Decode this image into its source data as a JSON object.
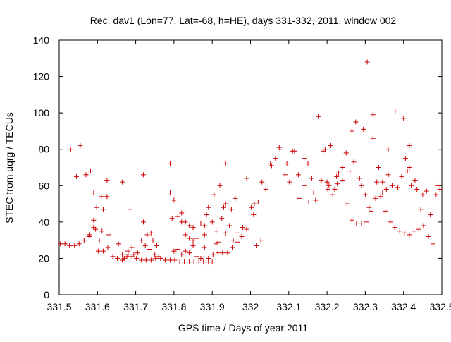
{
  "chart_data": {
    "type": "scatter",
    "title": "Rec. dav1 (Lon=77, Lat=-68, h=HE), days 331-332, 2011, window 002",
    "xlabel": "GPS time / Days of year 2011",
    "ylabel": "STEC from uqrg / TECUs",
    "xlim": [
      331.5,
      332.5
    ],
    "ylim": [
      0,
      140
    ],
    "xticks": [
      "331.5",
      "331.6",
      "331.7",
      "331.8",
      "331.9",
      "332",
      "332.1",
      "332.2",
      "332.3",
      "332.4",
      "332.5"
    ],
    "yticks": [
      "0",
      "20",
      "40",
      "60",
      "80",
      "100",
      "120",
      "140"
    ],
    "grid": false,
    "legend": "none",
    "marker": "plus",
    "marker_color": "#cc0000",
    "series": [
      {
        "points": [
          [
            331.503,
            28
          ],
          [
            331.515,
            28
          ],
          [
            331.527,
            27
          ],
          [
            331.54,
            27
          ],
          [
            331.552,
            28
          ],
          [
            331.565,
            30
          ],
          [
            331.578,
            32
          ],
          [
            331.59,
            37
          ],
          [
            331.602,
            24
          ],
          [
            331.615,
            24
          ],
          [
            331.627,
            26
          ],
          [
            331.64,
            21
          ],
          [
            331.652,
            20
          ],
          [
            331.665,
            19
          ],
          [
            331.677,
            21
          ],
          [
            331.69,
            21
          ],
          [
            331.702,
            20
          ],
          [
            331.715,
            19
          ],
          [
            331.727,
            19
          ],
          [
            331.74,
            19
          ],
          [
            331.752,
            20
          ],
          [
            331.765,
            20
          ],
          [
            331.777,
            19
          ],
          [
            331.79,
            19
          ],
          [
            331.802,
            19
          ],
          [
            331.815,
            18
          ],
          [
            331.827,
            18
          ],
          [
            331.84,
            18
          ],
          [
            331.852,
            18
          ],
          [
            331.865,
            18
          ],
          [
            331.877,
            18
          ],
          [
            331.89,
            18
          ],
          [
            331.902,
            22
          ],
          [
            331.915,
            23
          ],
          [
            331.927,
            23
          ],
          [
            331.94,
            23
          ],
          [
            331.952,
            26
          ],
          [
            331.965,
            29
          ],
          [
            331.977,
            32
          ],
          [
            331.99,
            36
          ],
          [
            332.002,
            48
          ],
          [
            332.015,
            27
          ],
          [
            332.027,
            30
          ],
          [
            332.04,
            58
          ],
          [
            332.052,
            72
          ],
          [
            332.065,
            75
          ],
          [
            332.077,
            80
          ],
          [
            332.09,
            66
          ],
          [
            332.102,
            62
          ],
          [
            332.115,
            79
          ],
          [
            332.127,
            53
          ],
          [
            332.14,
            60
          ],
          [
            332.152,
            51
          ],
          [
            332.165,
            56
          ],
          [
            332.177,
            98
          ],
          [
            332.19,
            79
          ],
          [
            332.202,
            58
          ],
          [
            332.215,
            55
          ],
          [
            332.227,
            61
          ],
          [
            332.24,
            63
          ],
          [
            332.252,
            50
          ],
          [
            332.265,
            41
          ],
          [
            332.277,
            39
          ],
          [
            332.29,
            39
          ],
          [
            332.302,
            40
          ],
          [
            332.315,
            46
          ],
          [
            332.327,
            53
          ],
          [
            332.34,
            54
          ],
          [
            332.352,
            46
          ],
          [
            332.365,
            40
          ],
          [
            332.377,
            37
          ],
          [
            332.39,
            35
          ],
          [
            332.402,
            34
          ],
          [
            332.415,
            33
          ],
          [
            332.427,
            35
          ],
          [
            332.44,
            36
          ],
          [
            332.452,
            38
          ],
          [
            332.465,
            32
          ],
          [
            332.477,
            28
          ],
          [
            332.49,
            60
          ],
          [
            331.53,
            80
          ],
          [
            331.555,
            82
          ],
          [
            331.545,
            65
          ],
          [
            331.57,
            66
          ],
          [
            331.582,
            68
          ],
          [
            331.59,
            56
          ],
          [
            331.598,
            48
          ],
          [
            331.61,
            54
          ],
          [
            331.625,
            54
          ],
          [
            331.625,
            63
          ],
          [
            331.665,
            62
          ],
          [
            331.685,
            47
          ],
          [
            331.72,
            66
          ],
          [
            331.79,
            72
          ],
          [
            331.8,
            52
          ],
          [
            331.79,
            56
          ],
          [
            331.83,
            40
          ],
          [
            331.84,
            38
          ],
          [
            331.85,
            37
          ],
          [
            331.88,
            38
          ],
          [
            331.905,
            55
          ],
          [
            331.92,
            60
          ],
          [
            331.935,
            72
          ],
          [
            331.935,
            50
          ],
          [
            331.95,
            47
          ],
          [
            331.96,
            53
          ],
          [
            331.99,
            64
          ],
          [
            332.01,
            50
          ],
          [
            332.03,
            62
          ],
          [
            332.055,
            71
          ],
          [
            332.075,
            81
          ],
          [
            332.11,
            79
          ],
          [
            332.15,
            72
          ],
          [
            332.16,
            64
          ],
          [
            332.195,
            80
          ],
          [
            332.21,
            82
          ],
          [
            332.23,
            67
          ],
          [
            332.25,
            78
          ],
          [
            332.265,
            90
          ],
          [
            332.275,
            95
          ],
          [
            332.295,
            91
          ],
          [
            332.305,
            128
          ],
          [
            332.32,
            99
          ],
          [
            332.32,
            86
          ],
          [
            332.335,
            70
          ],
          [
            332.345,
            62
          ],
          [
            332.36,
            80
          ],
          [
            332.378,
            101
          ],
          [
            332.4,
            97
          ],
          [
            332.405,
            75
          ],
          [
            332.415,
            82
          ],
          [
            332.415,
            70
          ],
          [
            332.43,
            63
          ],
          [
            332.445,
            47
          ],
          [
            332.46,
            57
          ],
          [
            332.47,
            44
          ],
          [
            332.485,
            55
          ],
          [
            332.495,
            58
          ],
          [
            331.58,
            33
          ],
          [
            331.59,
            41
          ],
          [
            331.595,
            36
          ],
          [
            331.605,
            30
          ],
          [
            331.612,
            35
          ],
          [
            331.615,
            47
          ],
          [
            331.63,
            33
          ],
          [
            331.68,
            22
          ],
          [
            331.69,
            26
          ],
          [
            331.72,
            40
          ],
          [
            331.73,
            33
          ],
          [
            331.74,
            34
          ],
          [
            331.745,
            30
          ],
          [
            331.755,
            27
          ],
          [
            331.795,
            42
          ],
          [
            331.81,
            43
          ],
          [
            331.82,
            45
          ],
          [
            331.82,
            40
          ],
          [
            331.83,
            33
          ],
          [
            331.84,
            31
          ],
          [
            331.85,
            30
          ],
          [
            331.86,
            31
          ],
          [
            331.87,
            39
          ],
          [
            331.88,
            33
          ],
          [
            331.885,
            44
          ],
          [
            331.89,
            48
          ],
          [
            331.9,
            40
          ],
          [
            331.91,
            35
          ],
          [
            331.915,
            29
          ],
          [
            331.925,
            42
          ],
          [
            331.93,
            48
          ],
          [
            331.935,
            34
          ],
          [
            331.945,
            38
          ],
          [
            331.955,
            30
          ],
          [
            331.965,
            34
          ],
          [
            331.98,
            37
          ],
          [
            332.008,
            44
          ],
          [
            332.02,
            51
          ],
          [
            332.095,
            72
          ],
          [
            332.125,
            66
          ],
          [
            332.14,
            75
          ],
          [
            332.17,
            52
          ],
          [
            332.185,
            63
          ],
          [
            332.2,
            62
          ],
          [
            332.205,
            60
          ],
          [
            332.22,
            58
          ],
          [
            332.225,
            65
          ],
          [
            332.24,
            70
          ],
          [
            332.26,
            68
          ],
          [
            332.27,
            73
          ],
          [
            332.285,
            64
          ],
          [
            332.29,
            60
          ],
          [
            332.3,
            55
          ],
          [
            332.31,
            48
          ],
          [
            332.33,
            62
          ],
          [
            332.345,
            56
          ],
          [
            332.355,
            58
          ],
          [
            332.36,
            66
          ],
          [
            332.37,
            60
          ],
          [
            332.385,
            59
          ],
          [
            332.395,
            65
          ],
          [
            332.41,
            68
          ],
          [
            332.42,
            60
          ],
          [
            332.435,
            58
          ],
          [
            332.45,
            55
          ],
          [
            331.655,
            28
          ],
          [
            331.665,
            22
          ],
          [
            331.67,
            20
          ],
          [
            331.68,
            24
          ],
          [
            331.695,
            22
          ],
          [
            331.705,
            23
          ],
          [
            331.715,
            30
          ],
          [
            331.725,
            27
          ],
          [
            331.735,
            25
          ],
          [
            331.75,
            22
          ],
          [
            331.76,
            21
          ],
          [
            331.8,
            24
          ],
          [
            331.81,
            25
          ],
          [
            331.82,
            22
          ],
          [
            331.83,
            24
          ],
          [
            331.84,
            23
          ],
          [
            331.85,
            27
          ],
          [
            331.86,
            21
          ],
          [
            331.87,
            20
          ],
          [
            331.88,
            26
          ],
          [
            331.89,
            20
          ],
          [
            331.9,
            18
          ],
          [
            331.91,
            28
          ]
        ]
      }
    ]
  }
}
